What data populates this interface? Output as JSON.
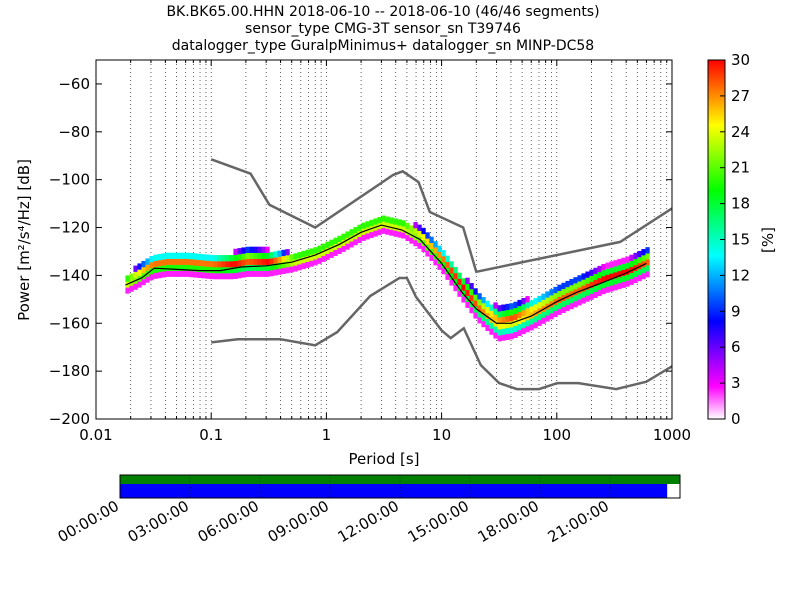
{
  "chart_data": [
    {
      "type": "heatmap",
      "title": {
        "line1": "BK.BK65.00.HHN   2018-06-10 -- 2018-06-10  (46/46 segments)",
        "line2": "sensor_type CMG-3T sensor_sn T39746",
        "line3": "datalogger_type GuralpMinimus+ datalogger_sn MINP-DC58"
      },
      "xlabel": "Period [s]",
      "ylabel": "Power [m²/s⁴/Hz] [dB]",
      "xscale": "log",
      "xlim": [
        0.01,
        1000
      ],
      "ylim": [
        -200,
        -50
      ],
      "x_ticks": [
        {
          "value": 0.01,
          "label": "0.01"
        },
        {
          "value": 0.1,
          "label": "0.1"
        },
        {
          "value": 1,
          "label": "1"
        },
        {
          "value": 10,
          "label": "10"
        },
        {
          "value": 100,
          "label": "100"
        },
        {
          "value": 1000,
          "label": "1000"
        }
      ],
      "y_ticks": [
        {
          "value": -60,
          "label": "−60"
        },
        {
          "value": -80,
          "label": "−80"
        },
        {
          "value": -100,
          "label": "−100"
        },
        {
          "value": -120,
          "label": "−120"
        },
        {
          "value": -140,
          "label": "−140"
        },
        {
          "value": -160,
          "label": "−160"
        },
        {
          "value": -180,
          "label": "−180"
        },
        {
          "value": -200,
          "label": "−200"
        }
      ],
      "grid": "dotted vertical at log subdivisions",
      "colorbar": {
        "label": "[%]",
        "range": [
          0,
          30
        ],
        "ticks": [
          {
            "value": 0,
            "label": "0"
          },
          {
            "value": 3,
            "label": "3"
          },
          {
            "value": 6,
            "label": "6"
          },
          {
            "value": 9,
            "label": "9"
          },
          {
            "value": 12,
            "label": "12"
          },
          {
            "value": 15,
            "label": "15"
          },
          {
            "value": 18,
            "label": "18"
          },
          {
            "value": 21,
            "label": "21"
          },
          {
            "value": 24,
            "label": "24"
          },
          {
            "value": 27,
            "label": "27"
          },
          {
            "value": 30,
            "label": "30"
          }
        ],
        "colors": [
          "#ffffff",
          "#ff00ff",
          "#8000ff",
          "#0000ff",
          "#0080ff",
          "#00ffff",
          "#00ff80",
          "#00ff00",
          "#80ff00",
          "#ffff00",
          "#ff8000",
          "#ff0000"
        ]
      },
      "noise_model_high": [
        {
          "x": 0.1,
          "y": -91.5
        },
        {
          "x": 0.22,
          "y": -97.5
        },
        {
          "x": 0.32,
          "y": -110.5
        },
        {
          "x": 0.8,
          "y": -120
        },
        {
          "x": 3.8,
          "y": -98
        },
        {
          "x": 4.6,
          "y": -96.5
        },
        {
          "x": 6.3,
          "y": -101
        },
        {
          "x": 7.9,
          "y": -113.5
        },
        {
          "x": 15.4,
          "y": -120
        },
        {
          "x": 20,
          "y": -138.5
        },
        {
          "x": 354.8,
          "y": -126
        },
        {
          "x": 1000,
          "y": -112
        }
      ],
      "noise_model_low": [
        {
          "x": 0.1,
          "y": -168
        },
        {
          "x": 0.17,
          "y": -166.7
        },
        {
          "x": 0.4,
          "y": -166.7
        },
        {
          "x": 0.8,
          "y": -169.2
        },
        {
          "x": 1.24,
          "y": -163.7
        },
        {
          "x": 2.4,
          "y": -148.6
        },
        {
          "x": 4.3,
          "y": -141.1
        },
        {
          "x": 5.0,
          "y": -141.1
        },
        {
          "x": 6.0,
          "y": -149
        },
        {
          "x": 10.0,
          "y": -163
        },
        {
          "x": 12.0,
          "y": -166.2
        },
        {
          "x": 15.6,
          "y": -162.1
        },
        {
          "x": 21.9,
          "y": -177.5
        },
        {
          "x": 31.6,
          "y": -185
        },
        {
          "x": 45,
          "y": -187.5
        },
        {
          "x": 70,
          "y": -187.5
        },
        {
          "x": 101,
          "y": -185
        },
        {
          "x": 154,
          "y": -185
        },
        {
          "x": 328,
          "y": -187.5
        },
        {
          "x": 600,
          "y": -184.4
        },
        {
          "x": 1000,
          "y": -178
        }
      ],
      "mean_psd": [
        {
          "x": 0.018,
          "y": -144
        },
        {
          "x": 0.025,
          "y": -141
        },
        {
          "x": 0.032,
          "y": -137
        },
        {
          "x": 0.05,
          "y": -137.5
        },
        {
          "x": 0.08,
          "y": -138
        },
        {
          "x": 0.12,
          "y": -138
        },
        {
          "x": 0.18,
          "y": -136.5
        },
        {
          "x": 0.3,
          "y": -136
        },
        {
          "x": 0.5,
          "y": -134.5
        },
        {
          "x": 0.8,
          "y": -131.5
        },
        {
          "x": 1.3,
          "y": -127
        },
        {
          "x": 2.0,
          "y": -122
        },
        {
          "x": 3.0,
          "y": -119
        },
        {
          "x": 4.5,
          "y": -121
        },
        {
          "x": 6.5,
          "y": -125
        },
        {
          "x": 10,
          "y": -135
        },
        {
          "x": 15,
          "y": -147
        },
        {
          "x": 20,
          "y": -154
        },
        {
          "x": 30,
          "y": -160
        },
        {
          "x": 40,
          "y": -160
        },
        {
          "x": 60,
          "y": -157
        },
        {
          "x": 100,
          "y": -151
        },
        {
          "x": 150,
          "y": -147
        },
        {
          "x": 250,
          "y": -143
        },
        {
          "x": 400,
          "y": -139
        },
        {
          "x": 600,
          "y": -135
        }
      ],
      "psd_band": [
        {
          "x": 0.018,
          "lo": -146,
          "hi": -142
        },
        {
          "x": 0.022,
          "lo": -144,
          "hi": -139
        },
        {
          "x": 0.03,
          "lo": -140,
          "hi": -134
        },
        {
          "x": 0.04,
          "lo": -139,
          "hi": -133
        },
        {
          "x": 0.06,
          "lo": -139,
          "hi": -133
        },
        {
          "x": 0.1,
          "lo": -140,
          "hi": -134
        },
        {
          "x": 0.15,
          "lo": -140,
          "hi": -133
        },
        {
          "x": 0.2,
          "lo": -139,
          "hi": -131
        },
        {
          "x": 0.3,
          "lo": -139,
          "hi": -132
        },
        {
          "x": 0.5,
          "lo": -137,
          "hi": -133
        },
        {
          "x": 0.8,
          "lo": -134,
          "hi": -130
        },
        {
          "x": 1.3,
          "lo": -129,
          "hi": -125
        },
        {
          "x": 2.0,
          "lo": -124,
          "hi": -120
        },
        {
          "x": 3.0,
          "lo": -121,
          "hi": -117
        },
        {
          "x": 4.5,
          "lo": -123,
          "hi": -119
        },
        {
          "x": 6.5,
          "lo": -128,
          "hi": -123
        },
        {
          "x": 10,
          "lo": -138,
          "hi": -132
        },
        {
          "x": 15,
          "lo": -150,
          "hi": -143
        },
        {
          "x": 20,
          "lo": -158,
          "hi": -150
        },
        {
          "x": 30,
          "lo": -166,
          "hi": -156
        },
        {
          "x": 40,
          "lo": -165,
          "hi": -154
        },
        {
          "x": 60,
          "lo": -161,
          "hi": -152
        },
        {
          "x": 100,
          "lo": -155,
          "hi": -147
        },
        {
          "x": 150,
          "lo": -151,
          "hi": -143
        },
        {
          "x": 250,
          "lo": -146,
          "hi": -139
        },
        {
          "x": 400,
          "lo": -143,
          "hi": -136
        },
        {
          "x": 600,
          "lo": -139,
          "hi": -131
        }
      ]
    },
    {
      "type": "timeline",
      "x_ticks": [
        "00:00:00",
        "03:00:00",
        "06:00:00",
        "09:00:00",
        "12:00:00",
        "15:00:00",
        "18:00:00",
        "21:00:00"
      ],
      "xlim_hours": [
        0,
        24
      ],
      "top_bar": {
        "color": "#008000",
        "start_hours": 0,
        "end_hours": 24
      },
      "bottom_bar": {
        "color": "#0000ff",
        "start_hours": 0,
        "end_hours": 23.45
      }
    }
  ]
}
